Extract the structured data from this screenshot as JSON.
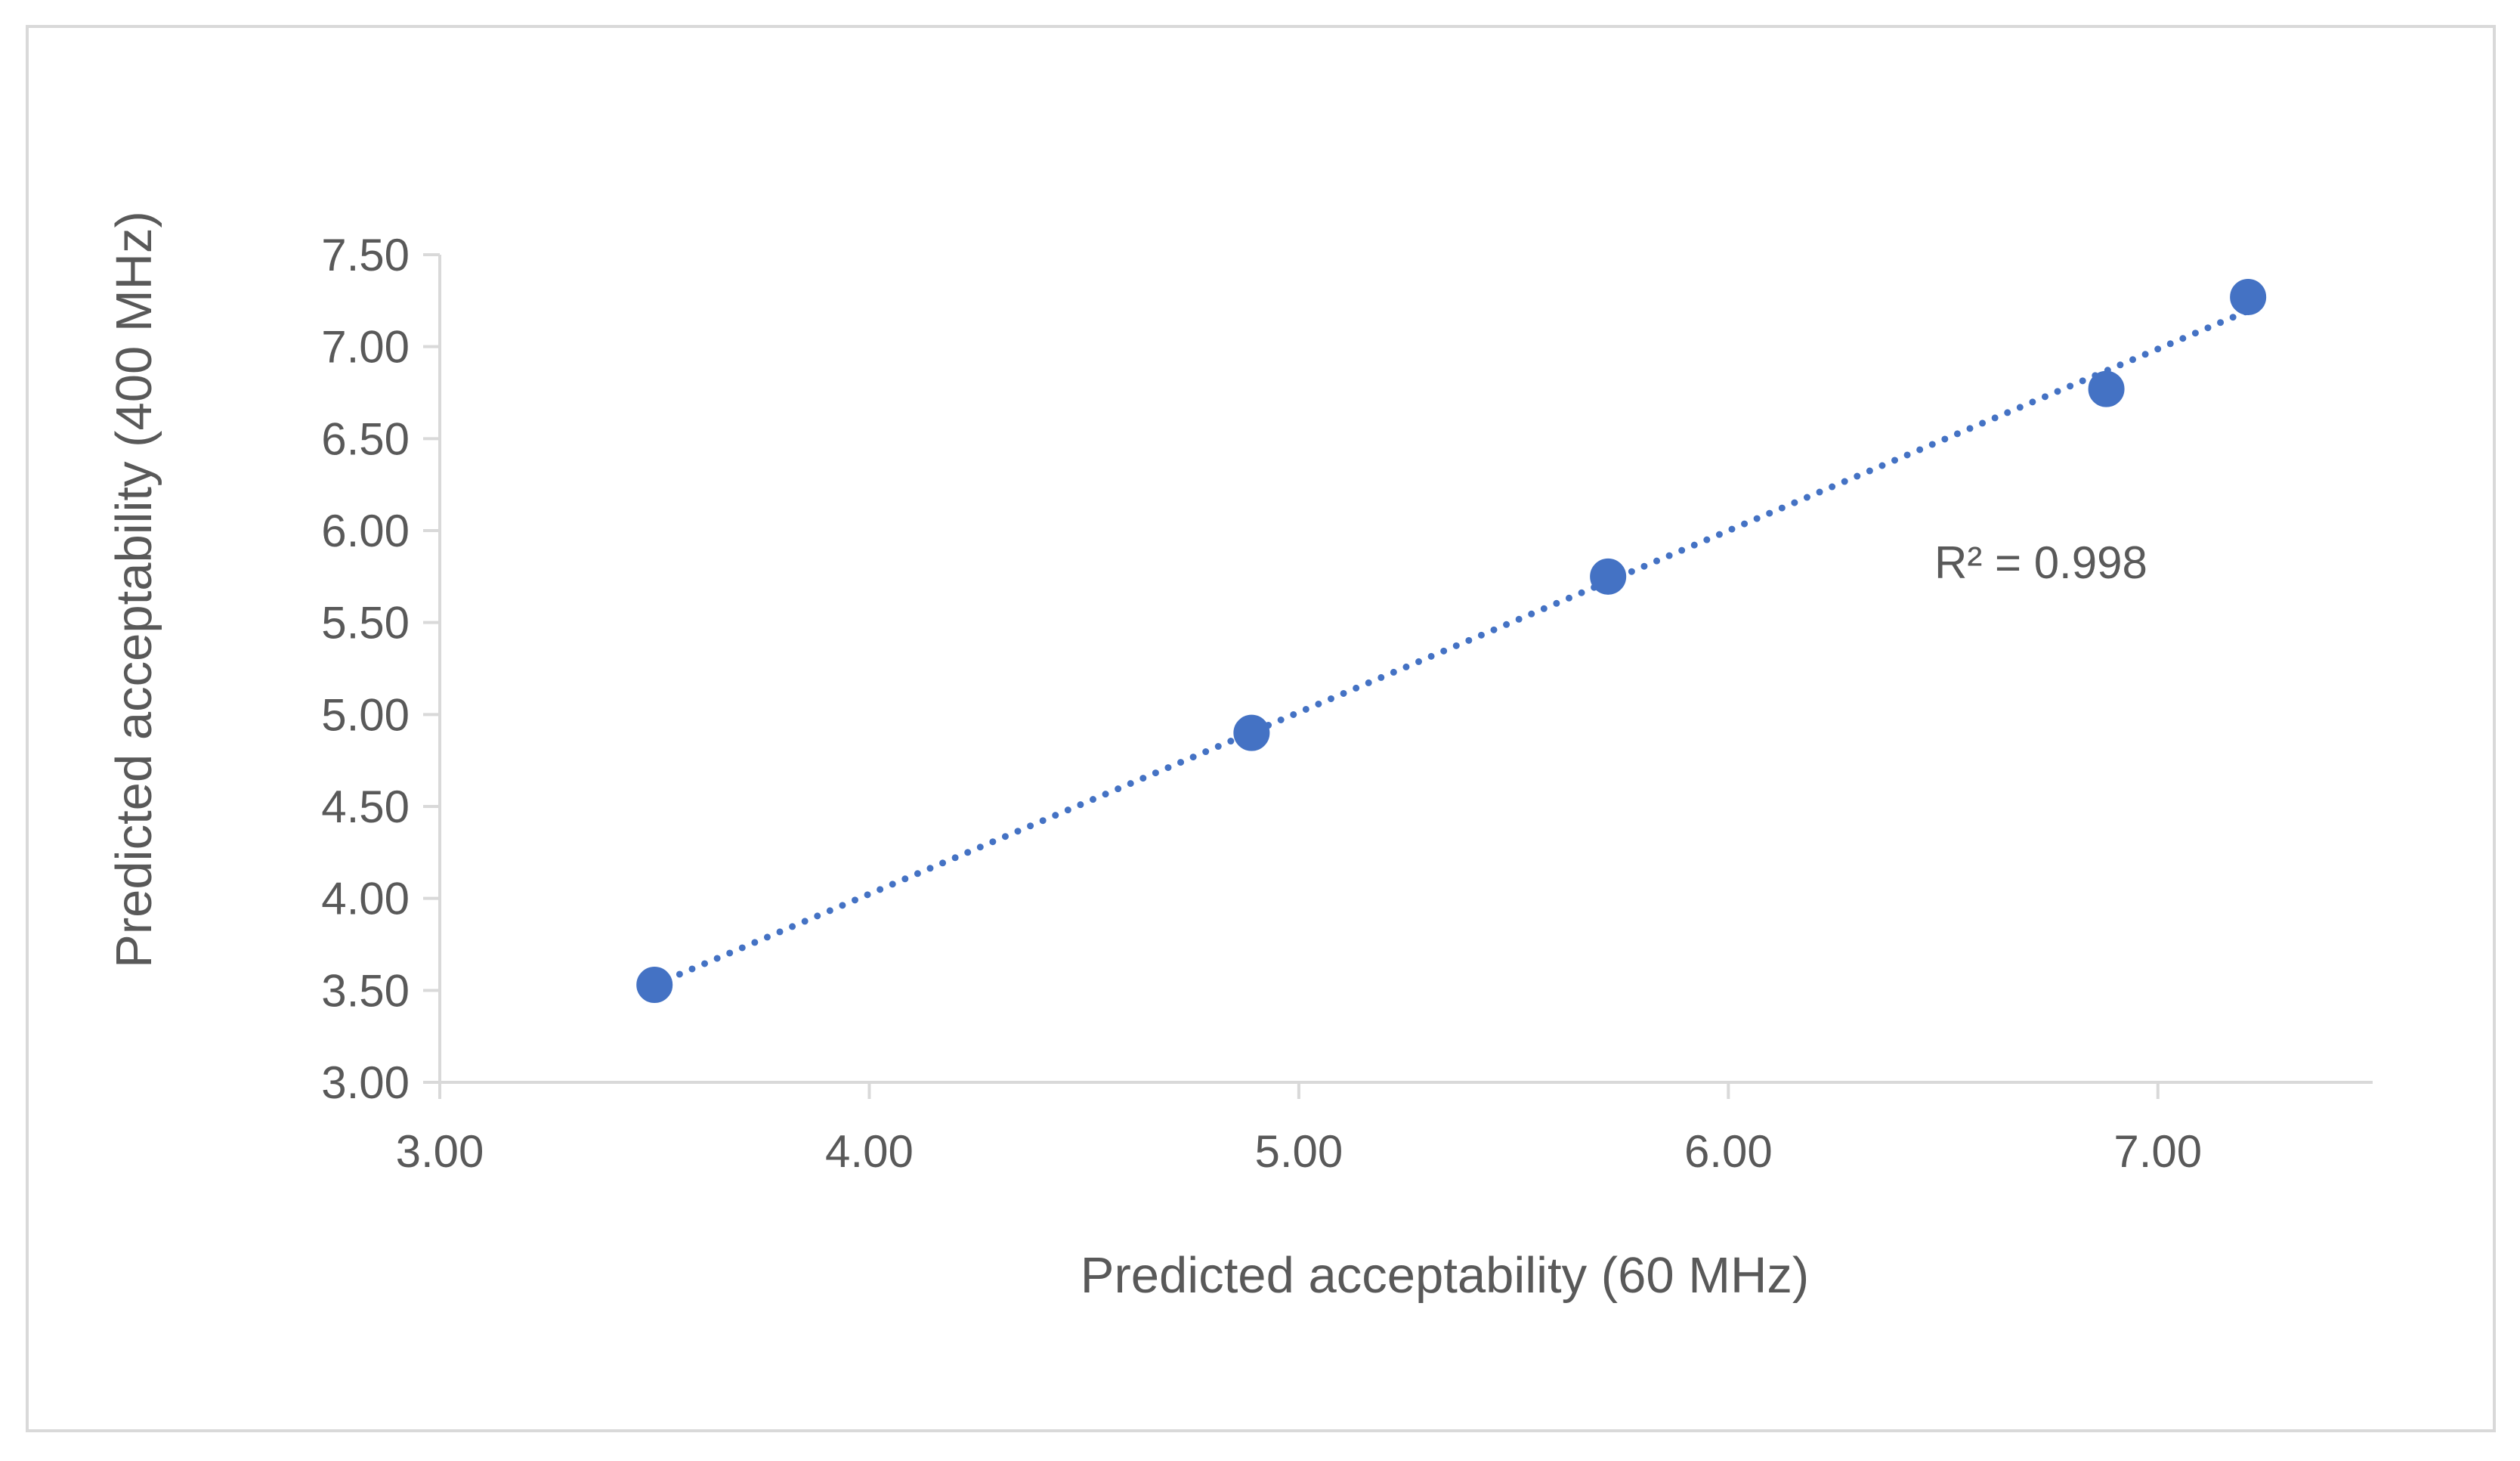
{
  "chart_data": {
    "type": "scatter",
    "title": "",
    "xlabel": "Predicted acceptability (60 MHz)",
    "ylabel": "Predicted acceptability (400 MHz)",
    "xlim": [
      3.0,
      7.5
    ],
    "ylim": [
      3.0,
      7.5
    ],
    "x_ticks": [
      3.0,
      4.0,
      5.0,
      6.0,
      7.0
    ],
    "x_tick_labels": [
      "3.00",
      "4.00",
      "5.00",
      "6.00",
      "7.00"
    ],
    "y_ticks": [
      3.0,
      3.5,
      4.0,
      4.5,
      5.0,
      5.5,
      6.0,
      6.5,
      7.0,
      7.5
    ],
    "y_tick_labels": [
      "3.00",
      "3.50",
      "4.00",
      "4.50",
      "5.00",
      "5.50",
      "6.00",
      "6.50",
      "7.00",
      "7.50"
    ],
    "grid": false,
    "legend": "none",
    "series": [
      {
        "x": [
          3.5,
          4.89,
          5.72,
          6.88,
          7.21
        ],
        "y": [
          3.53,
          4.9,
          5.75,
          6.77,
          7.27
        ],
        "color": "#4472C4",
        "marker": "circle"
      }
    ],
    "trendline": {
      "type": "linear",
      "style": "dotted",
      "color": "#4472C4",
      "x_range": [
        3.5,
        7.21
      ],
      "label": "R² = 0.998"
    },
    "annotations": [
      "R² = 0.998"
    ]
  }
}
